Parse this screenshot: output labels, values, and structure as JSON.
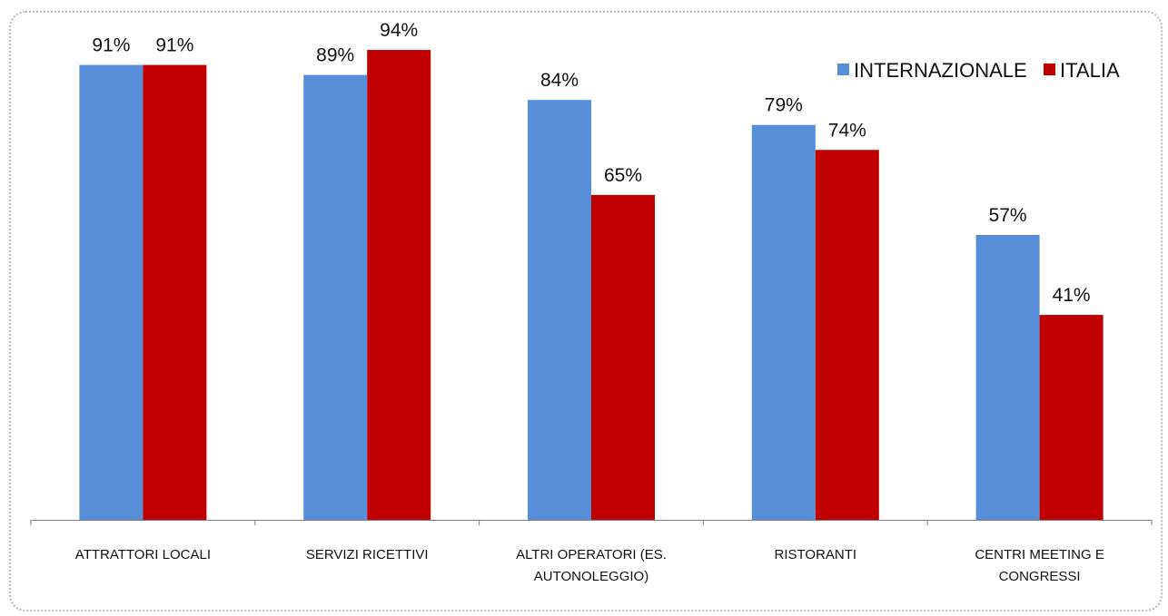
{
  "chart_data": {
    "type": "bar",
    "categories": [
      [
        "ATTRATTORI LOCALI"
      ],
      [
        "SERVIZI RICETTIVI"
      ],
      [
        "ALTRI OPERATORI (ES.",
        "AUTONOLEGGIO)"
      ],
      [
        "RISTORANTI"
      ],
      [
        "CENTRI MEETING E",
        "CONGRESSI"
      ]
    ],
    "series": [
      {
        "name": "INTERNAZIONALE",
        "color": "#568FD8",
        "values": [
          91,
          89,
          84,
          79,
          57
        ],
        "labels": [
          "91%",
          "89%",
          "84%",
          "79%",
          "57%"
        ]
      },
      {
        "name": "ITALIA",
        "color": "#C00000",
        "values": [
          91,
          94,
          65,
          74,
          41
        ],
        "labels": [
          "91%",
          "94%",
          "65%",
          "74%",
          "41%"
        ]
      }
    ],
    "ylim": [
      0,
      100
    ],
    "grid": false,
    "legend": "top-right",
    "title": "",
    "xlabel": "",
    "ylabel": ""
  }
}
